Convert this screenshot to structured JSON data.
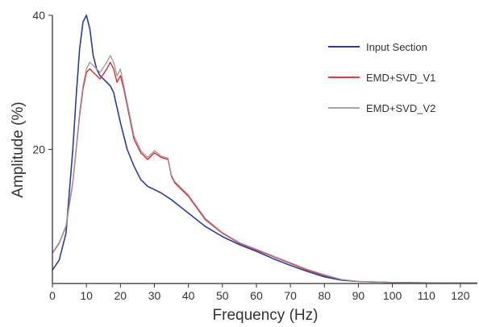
{
  "chart_data": {
    "type": "line",
    "xlabel": "Frequency (Hz)",
    "ylabel": "Amplitude (%)",
    "xlim": [
      0,
      125
    ],
    "ylim": [
      0,
      40
    ],
    "x_ticks": [
      0,
      10,
      20,
      30,
      40,
      50,
      60,
      70,
      80,
      90,
      100,
      110,
      120
    ],
    "y_ticks": [
      20,
      40
    ],
    "grid": false,
    "legend_position": "top-right",
    "series": [
      {
        "name": "Input Section",
        "color": "#2a3c9c",
        "x": [
          0,
          2,
          4,
          6,
          7,
          8,
          9,
          10,
          11,
          12,
          13,
          14,
          15,
          16,
          17,
          18,
          20,
          22,
          24,
          26,
          28,
          30,
          32,
          35,
          40,
          45,
          50,
          55,
          60,
          65,
          70,
          75,
          80,
          85,
          90,
          100,
          110,
          125
        ],
        "y": [
          2.0,
          3.5,
          7.5,
          20,
          28,
          35,
          39,
          40,
          38,
          34,
          32,
          31,
          30.5,
          30,
          29.5,
          28.5,
          24,
          20,
          17.5,
          15.5,
          14.5,
          14,
          13.5,
          12.5,
          10.5,
          8.5,
          7,
          5.8,
          4.8,
          3.7,
          2.7,
          1.8,
          1.0,
          0.5,
          0.3,
          0.15,
          0.1,
          0.05
        ]
      },
      {
        "name": "EMD+SVD_V1",
        "color": "#e0202a",
        "x": [
          0,
          2,
          4,
          6,
          7,
          8,
          9,
          10,
          11,
          12,
          14,
          16,
          17,
          18,
          19,
          20,
          21,
          22,
          24,
          26,
          28,
          30,
          32,
          34,
          35,
          36,
          40,
          45,
          50,
          55,
          60,
          65,
          70,
          75,
          80,
          85,
          90,
          100,
          110,
          125
        ],
        "y": [
          4.5,
          6,
          8.5,
          15,
          20,
          25,
          29,
          31.5,
          32,
          31.5,
          30.5,
          32,
          33,
          32,
          30,
          31,
          29,
          26.5,
          21.5,
          19.5,
          18.5,
          19.5,
          18.8,
          18.5,
          16,
          15,
          13,
          9.5,
          7.5,
          6,
          5,
          4,
          3,
          2,
          1.2,
          0.6,
          0.3,
          0.15,
          0.1,
          0.05
        ]
      },
      {
        "name": "EMD+SVD_V2",
        "color": "#9a9a9a",
        "x": [
          0,
          2,
          4,
          6,
          7,
          8,
          9,
          10,
          11,
          12,
          14,
          16,
          17,
          18,
          19,
          20,
          21,
          22,
          24,
          26,
          28,
          30,
          32,
          34,
          35,
          36,
          40,
          45,
          50,
          55,
          60,
          65,
          70,
          75,
          80,
          85,
          90,
          100,
          110,
          125
        ],
        "y": [
          4.6,
          6.1,
          8.6,
          15.2,
          20.3,
          25.5,
          29.5,
          32,
          33,
          32.5,
          31.5,
          33,
          34,
          33,
          31,
          32,
          29.5,
          27,
          22,
          19.8,
          18.8,
          19.8,
          19,
          18.7,
          16.2,
          15.2,
          13.2,
          9.7,
          7.6,
          6.1,
          5.1,
          4.1,
          3.1,
          2.1,
          1.3,
          0.6,
          0.3,
          0.15,
          0.1,
          0.05
        ]
      }
    ]
  }
}
